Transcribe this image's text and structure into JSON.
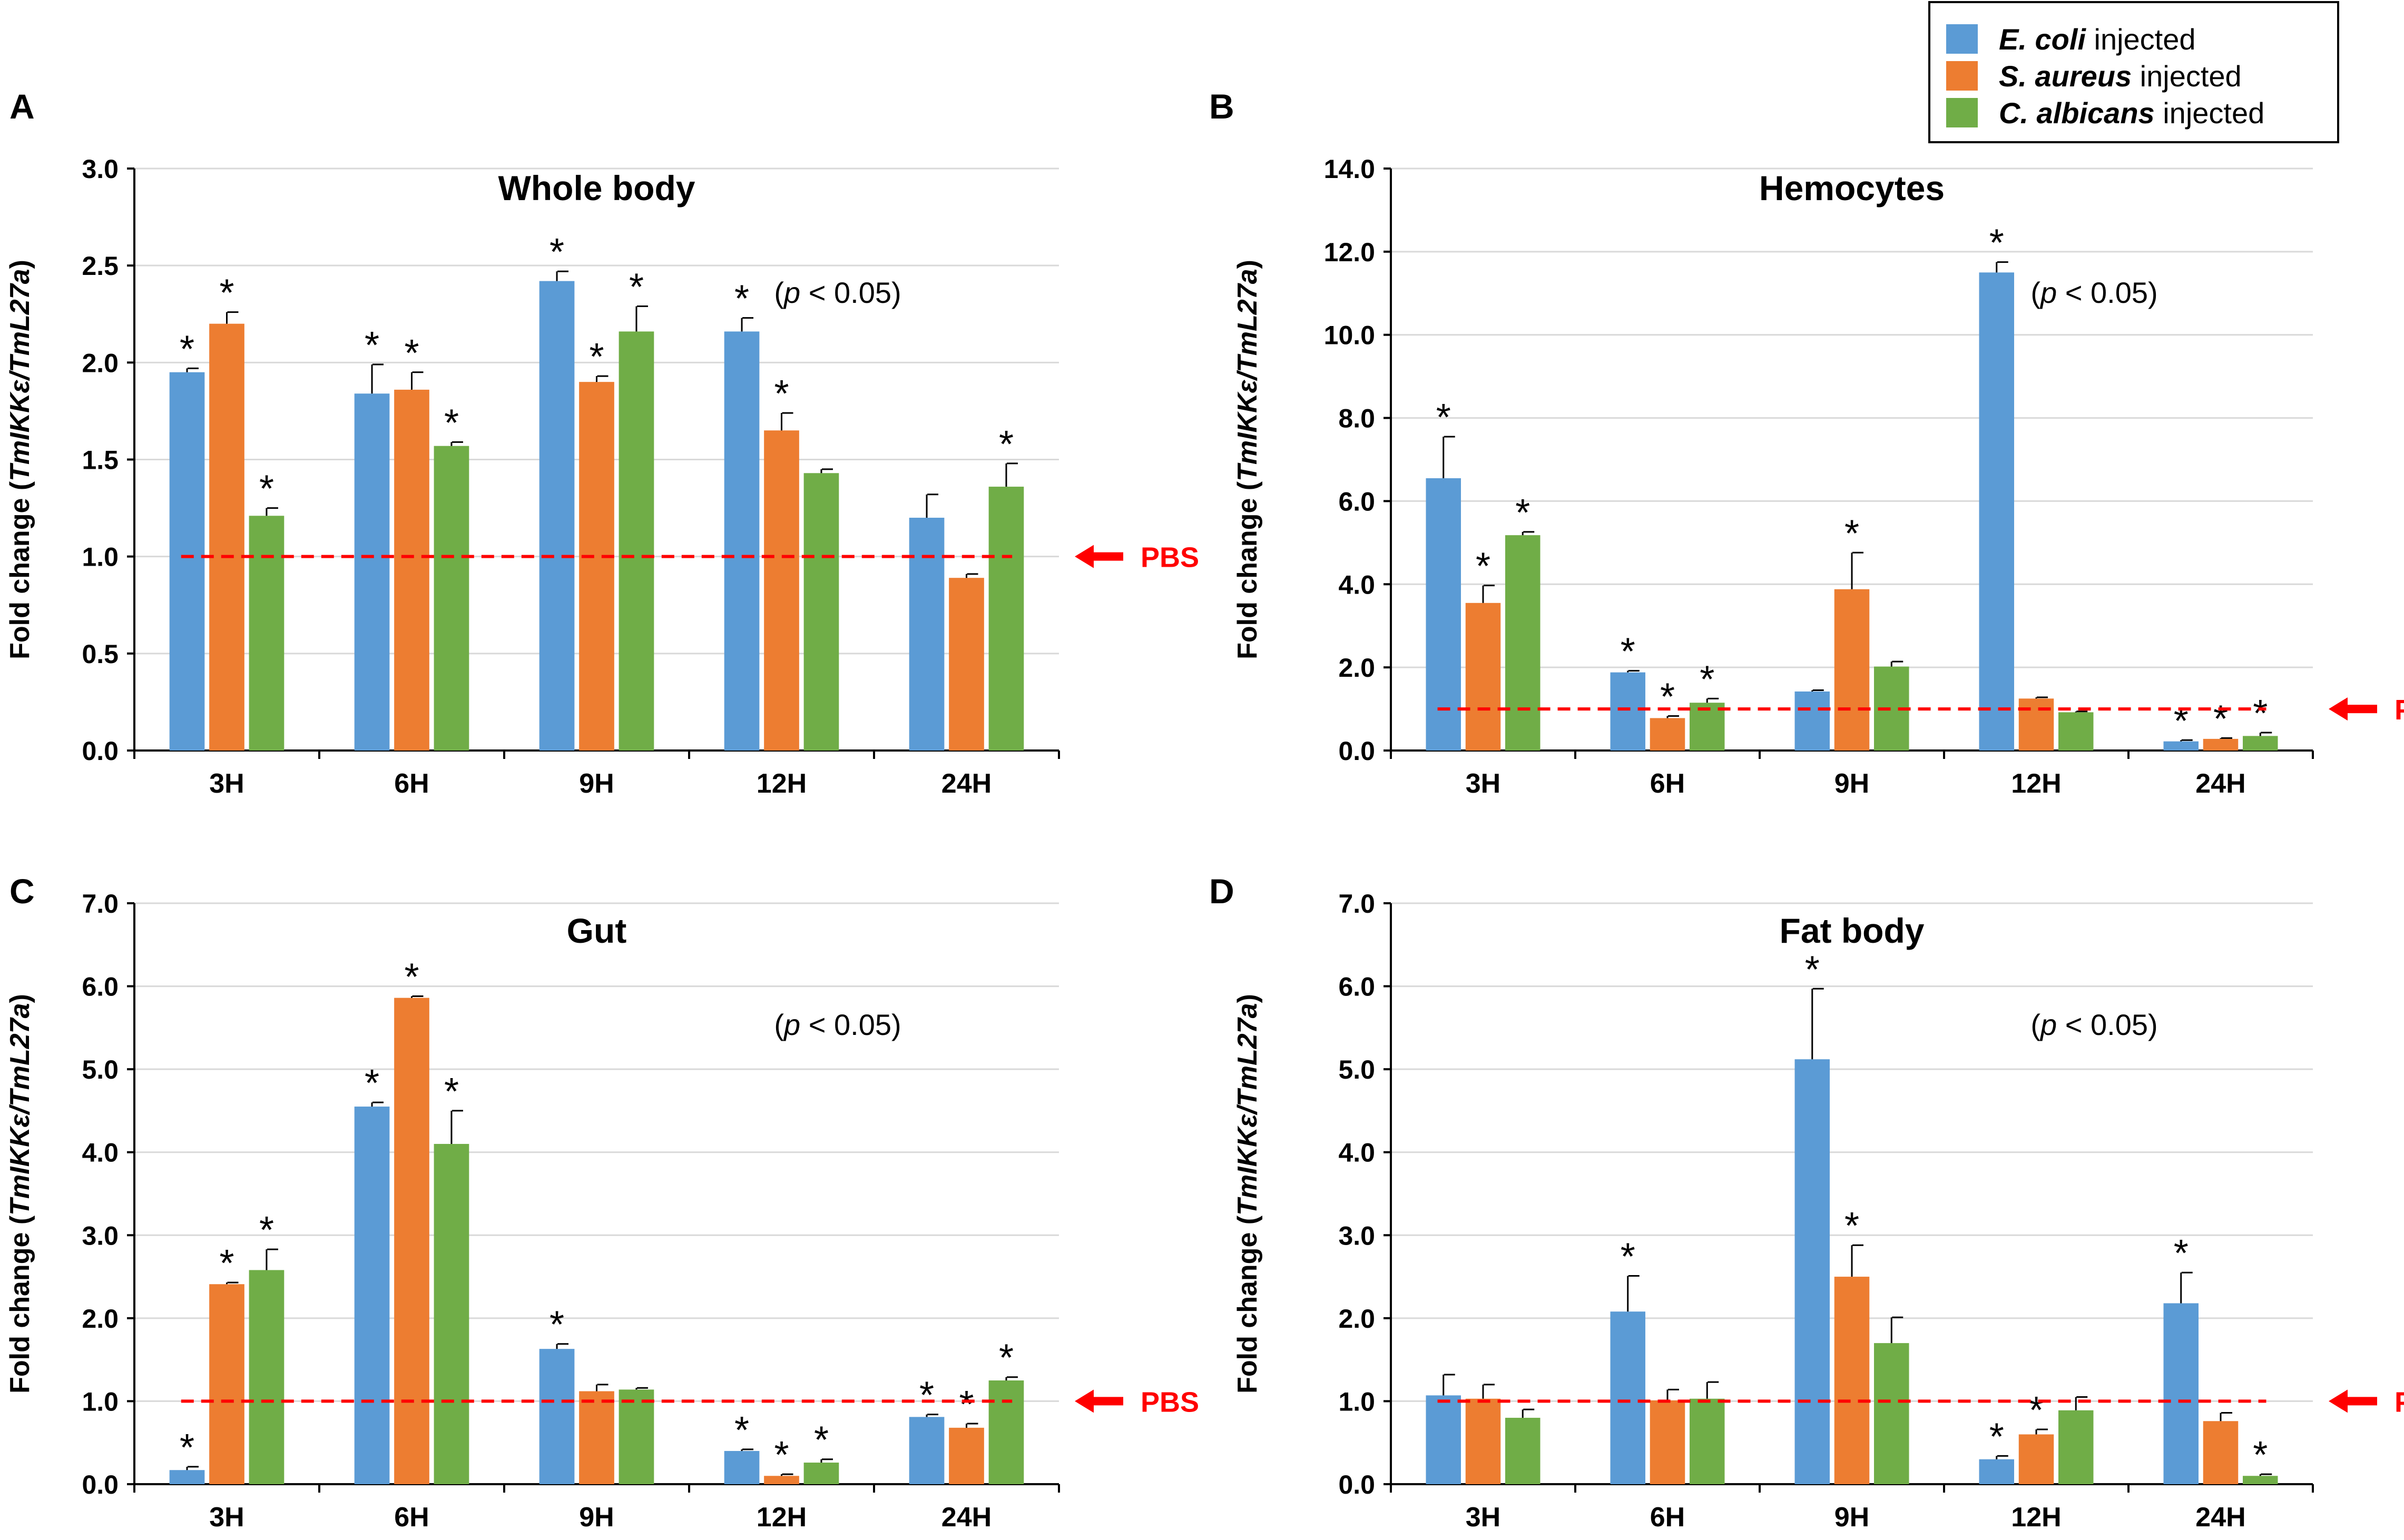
{
  "legend": [
    {
      "species": "E. coli",
      "suffix": " injected",
      "color": "#5B9BD5"
    },
    {
      "species": "S. aureus",
      "suffix": " injected",
      "color": "#ED7D31"
    },
    {
      "species": "C. albicans",
      "suffix": " injected",
      "color": "#70AD47"
    }
  ],
  "pbs_label": "PBS",
  "significance_note": [
    "(",
    "p",
    " < 0.05)"
  ],
  "ylabel": [
    "Fold change (",
    "TmIKKε/TmL27a",
    ")"
  ],
  "colors": {
    "baseline": "#FF0000",
    "axis": "#000000",
    "grid": "#D9D9D9"
  },
  "chart_data": [
    {
      "panel": "A",
      "type": "bar",
      "title": "Whole body",
      "categories": [
        "3H",
        "6H",
        "9H",
        "12H",
        "24H"
      ],
      "ylim": [
        0,
        3.0
      ],
      "ystep": 0.5,
      "ydecimals": 1,
      "pbs_arrow": true,
      "series": [
        {
          "name": "E. coli injected",
          "values": [
            1.95,
            1.84,
            2.42,
            2.16,
            1.2
          ],
          "errors": [
            0.02,
            0.15,
            0.05,
            0.07,
            0.12
          ],
          "sig": [
            true,
            true,
            true,
            true,
            false
          ]
        },
        {
          "name": "S. aureus injected",
          "values": [
            2.2,
            1.86,
            1.9,
            1.65,
            0.89
          ],
          "errors": [
            0.06,
            0.09,
            0.03,
            0.09,
            0.02
          ],
          "sig": [
            true,
            true,
            true,
            true,
            false
          ]
        },
        {
          "name": "C. albicans injected",
          "values": [
            1.21,
            1.57,
            2.16,
            1.43,
            1.36
          ],
          "errors": [
            0.04,
            0.02,
            0.13,
            0.02,
            0.12
          ],
          "sig": [
            true,
            true,
            true,
            false,
            true
          ]
        }
      ]
    },
    {
      "panel": "B",
      "type": "bar",
      "title": "Hemocytes",
      "categories": [
        "3H",
        "6H",
        "9H",
        "12H",
        "24H"
      ],
      "ylim": [
        0,
        14.0
      ],
      "ystep": 2.0,
      "ydecimals": 1,
      "pbs_arrow": true,
      "series": [
        {
          "name": "E. coli injected",
          "values": [
            6.55,
            1.88,
            1.42,
            11.5,
            0.22
          ],
          "errors": [
            1.0,
            0.04,
            0.03,
            0.25,
            0.03
          ],
          "sig": [
            true,
            true,
            false,
            true,
            true
          ]
        },
        {
          "name": "S. aureus injected",
          "values": [
            3.55,
            0.78,
            3.88,
            1.25,
            0.28
          ],
          "errors": [
            0.42,
            0.05,
            0.88,
            0.03,
            0.02
          ],
          "sig": [
            true,
            true,
            true,
            false,
            true
          ]
        },
        {
          "name": "C. albicans injected",
          "values": [
            5.18,
            1.15,
            2.02,
            0.92,
            0.35
          ],
          "errors": [
            0.08,
            0.1,
            0.12,
            0.02,
            0.08
          ],
          "sig": [
            true,
            true,
            false,
            false,
            true
          ]
        }
      ]
    },
    {
      "panel": "C",
      "type": "bar",
      "title": "Gut",
      "categories": [
        "3H",
        "6H",
        "9H",
        "12H",
        "24H"
      ],
      "ylim": [
        0,
        7.0
      ],
      "ystep": 1.0,
      "ydecimals": 1,
      "pbs_arrow": true,
      "series": [
        {
          "name": "E. coli injected",
          "values": [
            0.17,
            4.55,
            1.63,
            0.4,
            0.81
          ],
          "errors": [
            0.04,
            0.05,
            0.06,
            0.02,
            0.03
          ],
          "sig": [
            true,
            true,
            true,
            true,
            true
          ]
        },
        {
          "name": "S. aureus injected",
          "values": [
            2.41,
            5.86,
            1.12,
            0.1,
            0.68
          ],
          "errors": [
            0.02,
            0.02,
            0.08,
            0.02,
            0.05
          ],
          "sig": [
            true,
            true,
            false,
            true,
            true
          ]
        },
        {
          "name": "C. albicans injected",
          "values": [
            2.58,
            4.1,
            1.14,
            0.26,
            1.25
          ],
          "errors": [
            0.25,
            0.4,
            0.02,
            0.04,
            0.04
          ],
          "sig": [
            true,
            true,
            false,
            true,
            true
          ]
        }
      ]
    },
    {
      "panel": "D",
      "type": "bar",
      "title": "Fat body",
      "categories": [
        "3H",
        "6H",
        "9H",
        "12H",
        "24H"
      ],
      "ylim": [
        0,
        7.0
      ],
      "ystep": 1.0,
      "ydecimals": 1,
      "pbs_arrow": true,
      "series": [
        {
          "name": "E. coli injected",
          "values": [
            1.07,
            2.08,
            5.12,
            0.3,
            2.18
          ],
          "errors": [
            0.25,
            0.43,
            0.85,
            0.04,
            0.37
          ],
          "sig": [
            false,
            true,
            true,
            true,
            true
          ]
        },
        {
          "name": "S. aureus injected",
          "values": [
            1.03,
            1.01,
            2.5,
            0.6,
            0.76
          ],
          "errors": [
            0.17,
            0.13,
            0.38,
            0.06,
            0.1
          ],
          "sig": [
            false,
            false,
            true,
            true,
            false
          ]
        },
        {
          "name": "C. albicans injected",
          "values": [
            0.8,
            1.03,
            1.7,
            0.89,
            0.1
          ],
          "errors": [
            0.1,
            0.2,
            0.31,
            0.16,
            0.02
          ],
          "sig": [
            false,
            false,
            false,
            false,
            true
          ]
        }
      ]
    }
  ]
}
